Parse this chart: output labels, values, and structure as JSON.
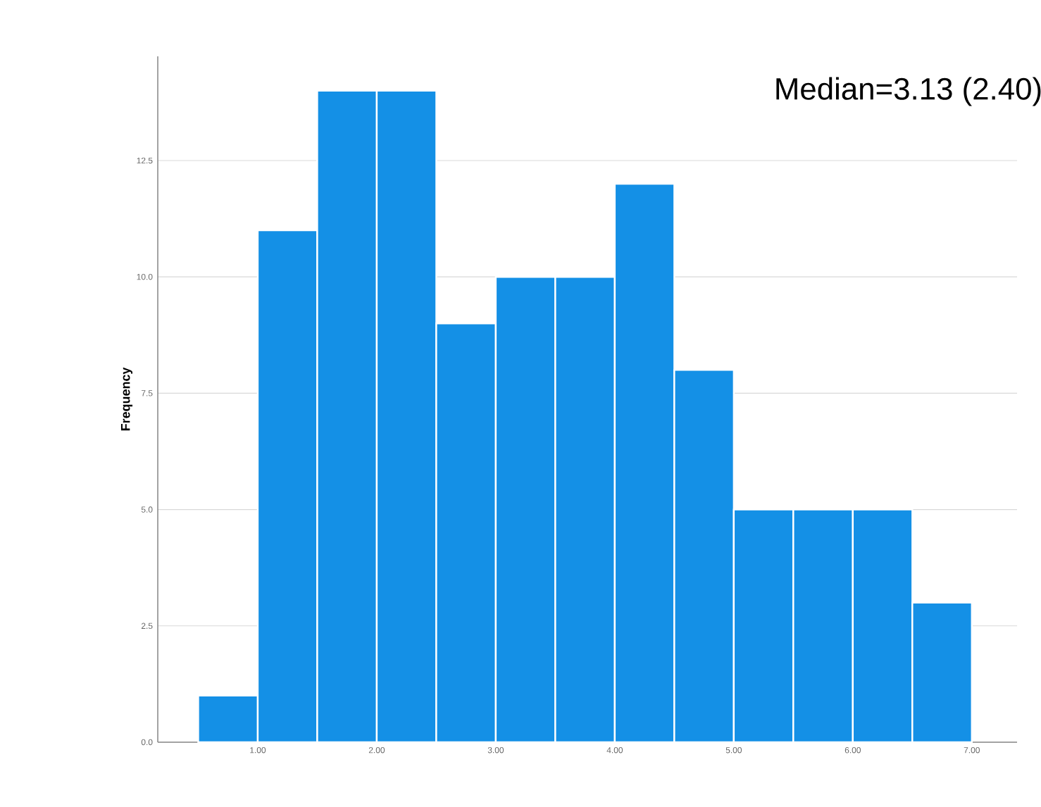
{
  "chart_data": {
    "type": "histogram",
    "ylabel": "Frequency",
    "bins": [
      0.5,
      1.0,
      1.5,
      2.0,
      2.5,
      3.0,
      3.5,
      4.0,
      4.5,
      5.0,
      5.5,
      6.0,
      6.5,
      7.0
    ],
    "values": [
      1,
      11,
      14,
      14,
      9,
      10,
      10,
      12,
      8,
      5,
      5,
      5,
      3
    ],
    "color": "#1490e6",
    "xlim": [
      0.16,
      7.38
    ],
    "xticks": [
      {
        "value": 1,
        "label": "1.00"
      },
      {
        "value": 2,
        "label": "2.00"
      },
      {
        "value": 3,
        "label": "3.00"
      },
      {
        "value": 4,
        "label": "4.00"
      },
      {
        "value": 5,
        "label": "5.00"
      },
      {
        "value": 6,
        "label": "6.00"
      },
      {
        "value": 7,
        "label": "7.00"
      }
    ],
    "ylim": [
      0,
      14.74
    ],
    "yticks": [
      {
        "value": 0,
        "label": "0.0"
      },
      {
        "value": 2.5,
        "label": "2.5"
      },
      {
        "value": 5,
        "label": "5.0"
      },
      {
        "value": 7.5,
        "label": "7.5"
      },
      {
        "value": 10,
        "label": "10.0"
      },
      {
        "value": 12.5,
        "label": "12.5"
      }
    ],
    "grid": "y",
    "annotations": [
      "Median=3.13 (2.40)"
    ]
  }
}
